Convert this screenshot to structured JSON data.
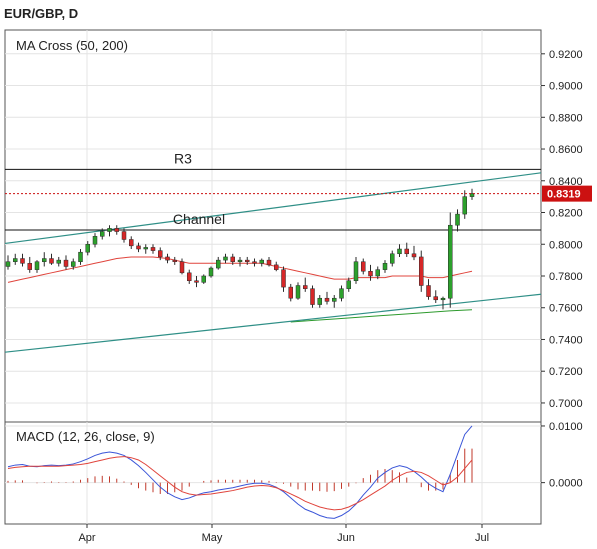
{
  "header": {
    "symbol_timeframe": "EUR/GBP, D"
  },
  "chart_data": [
    {
      "type": "candlestick",
      "title": "MA Cross (50, 200)",
      "x_tick_labels": [
        "Apr",
        "May",
        "Jun",
        "Jul"
      ],
      "y_ticks": [
        0.92,
        0.9,
        0.88,
        0.86,
        0.84,
        0.82,
        0.8,
        0.78,
        0.76,
        0.74,
        0.72,
        0.7
      ],
      "y_tick_labels": [
        "0.9200",
        "0.9000",
        "0.8800",
        "0.8600",
        "0.8400",
        "0.8200",
        "0.8000",
        "0.7800",
        "0.7600",
        "0.7400",
        "0.7200",
        "0.7000"
      ],
      "ylim": [
        0.688,
        0.935
      ],
      "grid": true,
      "last_price": 0.8319,
      "last_price_label": "0.8319",
      "candles_ohlc": [
        [
          0.786,
          0.793,
          0.784,
          0.789
        ],
        [
          0.789,
          0.794,
          0.787,
          0.791
        ],
        [
          0.791,
          0.794,
          0.786,
          0.788
        ],
        [
          0.788,
          0.792,
          0.782,
          0.784
        ],
        [
          0.784,
          0.79,
          0.782,
          0.789
        ],
        [
          0.789,
          0.795,
          0.786,
          0.791
        ],
        [
          0.791,
          0.794,
          0.787,
          0.788
        ],
        [
          0.788,
          0.792,
          0.786,
          0.79
        ],
        [
          0.79,
          0.793,
          0.784,
          0.786
        ],
        [
          0.786,
          0.791,
          0.784,
          0.789
        ],
        [
          0.789,
          0.797,
          0.787,
          0.795
        ],
        [
          0.795,
          0.802,
          0.793,
          0.8
        ],
        [
          0.8,
          0.807,
          0.798,
          0.805
        ],
        [
          0.805,
          0.81,
          0.803,
          0.808
        ],
        [
          0.808,
          0.812,
          0.805,
          0.81
        ],
        [
          0.81,
          0.812,
          0.806,
          0.808
        ],
        [
          0.808,
          0.81,
          0.801,
          0.803
        ],
        [
          0.803,
          0.805,
          0.797,
          0.799
        ],
        [
          0.799,
          0.801,
          0.795,
          0.797
        ],
        [
          0.797,
          0.8,
          0.794,
          0.798
        ],
        [
          0.798,
          0.8,
          0.794,
          0.796
        ],
        [
          0.796,
          0.798,
          0.79,
          0.792
        ],
        [
          0.792,
          0.794,
          0.788,
          0.79
        ],
        [
          0.79,
          0.792,
          0.787,
          0.789
        ],
        [
          0.789,
          0.791,
          0.781,
          0.782
        ],
        [
          0.782,
          0.784,
          0.775,
          0.777
        ],
        [
          0.777,
          0.78,
          0.773,
          0.776
        ],
        [
          0.776,
          0.781,
          0.775,
          0.78
        ],
        [
          0.78,
          0.786,
          0.779,
          0.785
        ],
        [
          0.785,
          0.792,
          0.784,
          0.79
        ],
        [
          0.79,
          0.794,
          0.788,
          0.792
        ],
        [
          0.792,
          0.794,
          0.787,
          0.789
        ],
        [
          0.789,
          0.792,
          0.786,
          0.79
        ],
        [
          0.79,
          0.792,
          0.787,
          0.789
        ],
        [
          0.789,
          0.791,
          0.786,
          0.788
        ],
        [
          0.788,
          0.791,
          0.786,
          0.79
        ],
        [
          0.79,
          0.792,
          0.786,
          0.787
        ],
        [
          0.787,
          0.789,
          0.783,
          0.784
        ],
        [
          0.784,
          0.786,
          0.77,
          0.773
        ],
        [
          0.773,
          0.775,
          0.764,
          0.766
        ],
        [
          0.766,
          0.776,
          0.765,
          0.774
        ],
        [
          0.774,
          0.779,
          0.77,
          0.772
        ],
        [
          0.772,
          0.774,
          0.76,
          0.762
        ],
        [
          0.762,
          0.768,
          0.76,
          0.766
        ],
        [
          0.766,
          0.77,
          0.762,
          0.764
        ],
        [
          0.764,
          0.768,
          0.76,
          0.766
        ],
        [
          0.766,
          0.774,
          0.764,
          0.772
        ],
        [
          0.772,
          0.779,
          0.77,
          0.777
        ],
        [
          0.777,
          0.792,
          0.775,
          0.789
        ],
        [
          0.789,
          0.791,
          0.781,
          0.783
        ],
        [
          0.783,
          0.787,
          0.777,
          0.78
        ],
        [
          0.78,
          0.786,
          0.778,
          0.784
        ],
        [
          0.784,
          0.79,
          0.782,
          0.788
        ],
        [
          0.788,
          0.796,
          0.786,
          0.794
        ],
        [
          0.794,
          0.8,
          0.792,
          0.797
        ],
        [
          0.797,
          0.801,
          0.792,
          0.794
        ],
        [
          0.794,
          0.799,
          0.79,
          0.792
        ],
        [
          0.792,
          0.796,
          0.77,
          0.774
        ],
        [
          0.774,
          0.778,
          0.765,
          0.767
        ],
        [
          0.767,
          0.771,
          0.763,
          0.765
        ],
        [
          0.765,
          0.767,
          0.759,
          0.766
        ],
        [
          0.766,
          0.82,
          0.76,
          0.812
        ],
        [
          0.812,
          0.822,
          0.808,
          0.819
        ],
        [
          0.819,
          0.834,
          0.816,
          0.83
        ],
        [
          0.83,
          0.835,
          0.828,
          0.832
        ]
      ],
      "ma_50": [
        0.776,
        0.777,
        0.778,
        0.779,
        0.78,
        0.781,
        0.782,
        0.783,
        0.784,
        0.785,
        0.786,
        0.787,
        0.788,
        0.789,
        0.79,
        0.791,
        0.7915,
        0.792,
        0.792,
        0.792,
        0.792,
        0.7915,
        0.791,
        0.79,
        0.789,
        0.788,
        0.788,
        0.788,
        0.788,
        0.788,
        0.788,
        0.788,
        0.788,
        0.788,
        0.788,
        0.788,
        0.787,
        0.786,
        0.785,
        0.784,
        0.783,
        0.782,
        0.781,
        0.78,
        0.779,
        0.778,
        0.778,
        0.778,
        0.779,
        0.779,
        0.779,
        0.779,
        0.779,
        0.78,
        0.78,
        0.78,
        0.78,
        0.78,
        0.779,
        0.779,
        0.779,
        0.78,
        0.781,
        0.782,
        0.783
      ],
      "ma_200": [
        0.751,
        0.752,
        0.753,
        0.754,
        0.755,
        0.756,
        0.757,
        0.758,
        0.7587
      ],
      "channel_lines": [
        {
          "name": "Channel",
          "from": [
            0,
            0.8005
          ],
          "to": [
            1,
            0.845
          ]
        },
        {
          "from": [
            0,
            0.732
          ],
          "to": [
            1,
            0.7685
          ]
        }
      ],
      "horizontal_levels": [
        {
          "name": "R3",
          "value": 0.8472
        },
        {
          "name": "Channel",
          "value": 0.809
        }
      ]
    },
    {
      "type": "line+histogram",
      "title": "MACD (12, 26, close, 9)",
      "y_ticks": [
        0.01,
        0.0
      ],
      "y_tick_labels": [
        "0.0100",
        "0.0000"
      ],
      "ylim": [
        -0.0073,
        0.0107
      ],
      "macd": [
        0.0028,
        0.0031,
        0.0032,
        0.0029,
        0.0028,
        0.003,
        0.0031,
        0.003,
        0.0031,
        0.0033,
        0.0037,
        0.0042,
        0.0048,
        0.0052,
        0.0054,
        0.0052,
        0.0048,
        0.004,
        0.003,
        0.0018,
        0.0005,
        -0.0008,
        -0.0018,
        -0.0025,
        -0.003,
        -0.0027,
        -0.0022,
        -0.0018,
        -0.0016,
        -0.0013,
        -0.0011,
        -0.0009,
        -0.0006,
        -0.0003,
        -0.0001,
        -0.0001,
        -0.0003,
        -0.0008,
        -0.0016,
        -0.0027,
        -0.0038,
        -0.0047,
        -0.0052,
        -0.0058,
        -0.0062,
        -0.0063,
        -0.0058,
        -0.005,
        -0.0038,
        -0.0022,
        -0.0008,
        0.0008,
        0.0018,
        0.0026,
        0.003,
        0.0027,
        0.002,
        0.001,
        -0.0002,
        -0.001,
        -0.0016,
        0.0015,
        0.005,
        0.0085,
        0.01
      ],
      "signal": [
        0.0025,
        0.0027,
        0.0028,
        0.0029,
        0.0029,
        0.0029,
        0.0029,
        0.0029,
        0.003,
        0.0031,
        0.0032,
        0.0034,
        0.0037,
        0.004,
        0.0043,
        0.0045,
        0.0046,
        0.0044,
        0.004,
        0.0032,
        0.0022,
        0.0012,
        0.0002,
        -0.0008,
        -0.0016,
        -0.002,
        -0.0022,
        -0.0021,
        -0.002,
        -0.0018,
        -0.0016,
        -0.0014,
        -0.0011,
        -0.0008,
        -0.0006,
        -0.0005,
        -0.0006,
        -0.0009,
        -0.0014,
        -0.002,
        -0.0026,
        -0.0033,
        -0.0038,
        -0.0043,
        -0.0046,
        -0.0048,
        -0.0047,
        -0.0043,
        -0.0037,
        -0.003,
        -0.0022,
        -0.0014,
        -0.0006,
        0.0004,
        0.0012,
        0.0018,
        0.002,
        0.0018,
        0.0012,
        0.0004,
        -0.0004,
        0.0,
        0.001,
        0.0025,
        0.004
      ],
      "histogram": [
        0.0003,
        0.0004,
        0.0004,
        0.0,
        -0.0001,
        0.0001,
        0.0002,
        0.0001,
        0.0001,
        0.0002,
        0.0005,
        0.0008,
        0.0011,
        0.0012,
        0.0011,
        0.0007,
        0.0002,
        -0.0004,
        -0.001,
        -0.0014,
        -0.0017,
        -0.002,
        -0.002,
        -0.0017,
        -0.0014,
        -0.0007,
        0.0,
        0.0003,
        0.0004,
        0.0005,
        0.0005,
        0.0005,
        0.0005,
        0.0005,
        0.0005,
        0.0004,
        0.0003,
        0.0001,
        -0.0002,
        -0.0007,
        -0.0012,
        -0.0014,
        -0.0014,
        -0.0015,
        -0.0016,
        -0.0015,
        -0.0011,
        -0.0007,
        -0.0001,
        0.0008,
        0.0014,
        0.0022,
        0.0024,
        0.0022,
        0.0018,
        0.0009,
        0.0,
        -0.0008,
        -0.0014,
        -0.0014,
        -0.0012,
        0.0015,
        0.004,
        0.006,
        0.006
      ]
    }
  ],
  "colors": {
    "bull": "#2ca02c",
    "bear": "#d62728",
    "wick": "#2b2b2b",
    "ma_50": "#e0443c",
    "ma_200": "#2d9a2d",
    "channel": "#2f8f87",
    "macd": "#3a55d8",
    "signal": "#e0443c",
    "histogram": "#c0392b",
    "last_price": "#cc1111",
    "grid": "#e4e4e4",
    "axis": "#333333"
  }
}
